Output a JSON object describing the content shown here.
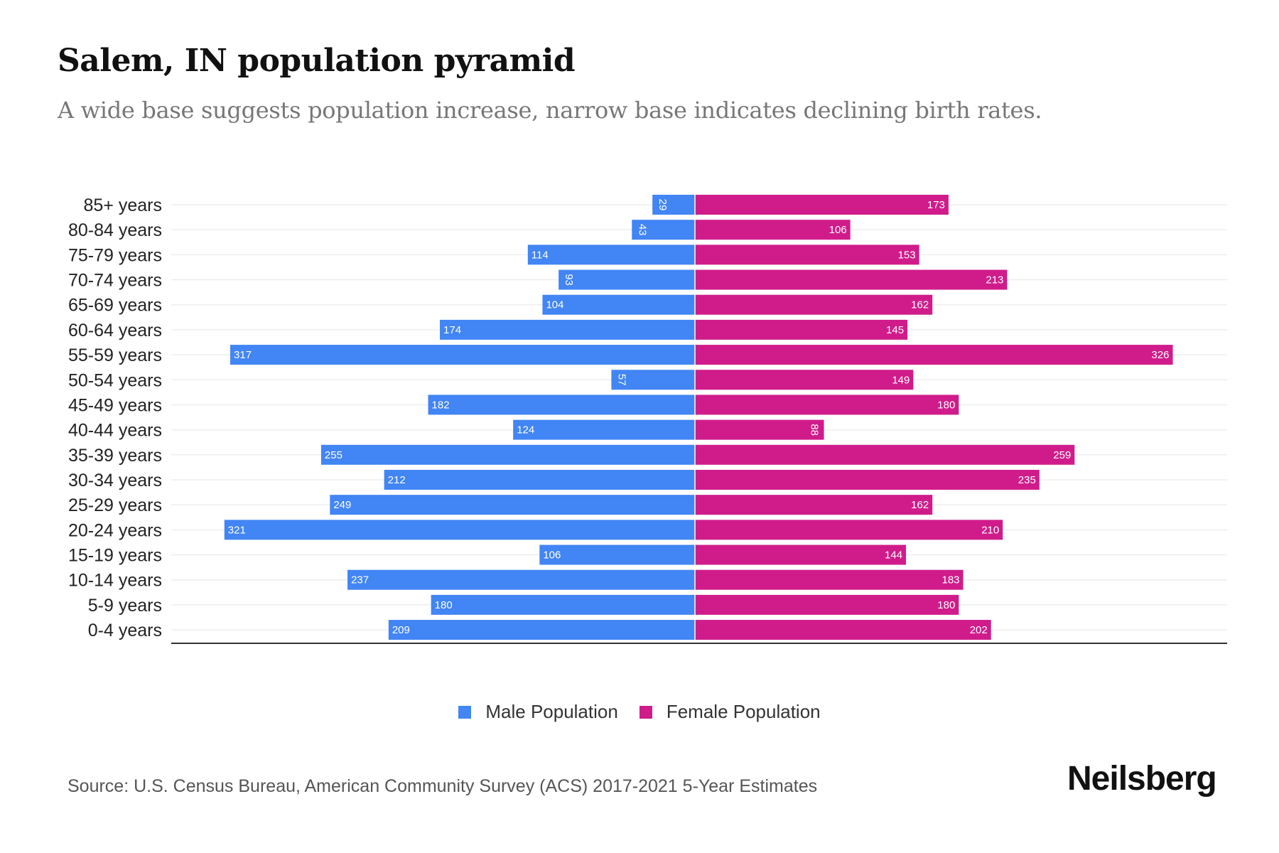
{
  "title": "Salem, IN population pyramid",
  "subtitle": "A wide base suggests population increase, narrow base indicates declining birth rates.",
  "source": "Source: U.S. Census Bureau, American Community Survey (ACS) 2017-2021 5-Year Estimates",
  "logo": "Neilsberg",
  "colors": {
    "male": "#4285f4",
    "female": "#d01c8b"
  },
  "chart_data": {
    "type": "bar",
    "orientation": "horizontal-pyramid",
    "title": "Salem, IN population pyramid",
    "categories": [
      "85+ years",
      "80-84 years",
      "75-79 years",
      "70-74 years",
      "65-69 years",
      "60-64 years",
      "55-59 years",
      "50-54 years",
      "45-49 years",
      "40-44 years",
      "35-39 years",
      "30-34 years",
      "25-29 years",
      "20-24 years",
      "15-19 years",
      "10-14 years",
      "5-9 years",
      "0-4 years"
    ],
    "series": [
      {
        "name": "Male Population",
        "values": [
          29,
          43,
          114,
          93,
          104,
          174,
          317,
          57,
          182,
          124,
          255,
          212,
          249,
          321,
          106,
          237,
          180,
          209
        ]
      },
      {
        "name": "Female Population",
        "values": [
          173,
          106,
          153,
          213,
          162,
          145,
          326,
          149,
          180,
          88,
          259,
          235,
          162,
          210,
          144,
          183,
          180,
          202
        ]
      }
    ],
    "xlim": [
      -360,
      366
    ],
    "grid": true,
    "legend": "bottom-center"
  }
}
